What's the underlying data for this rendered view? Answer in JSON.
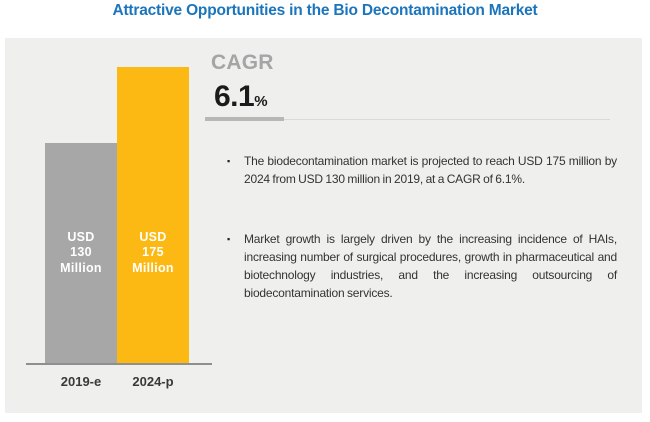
{
  "title": "Attractive Opportunities in the Bio Decontamination Market",
  "chart_data": {
    "type": "bar",
    "title": "Attractive Opportunities in the Bio Decontamination Market",
    "categories": [
      "2019-e",
      "2024-p"
    ],
    "values": [
      130,
      175
    ],
    "unit": "USD Million",
    "bar_value_labels": [
      "USD\n130\nMillion",
      "USD\n175\nMillion"
    ],
    "bar_colors": [
      "#A7A7A7",
      "#FCB813"
    ],
    "ylim": [
      0,
      175
    ],
    "grid": false,
    "legend": false,
    "xlabel": "",
    "ylabel": ""
  },
  "cagr": {
    "label": "CAGR",
    "value": "6.1",
    "unit": "%"
  },
  "bullets": {
    "marker": "▪",
    "items": [
      "The biodecontamination market is projected to reach USD 175 million by 2024 from USD 130 million in 2019, at a CAGR of 6.1%.",
      "Market growth is largely driven by the increasing incidence of HAIs, increasing number of surgical procedures, growth in pharmaceutical and biotechnology industries, and the increasing outsourcing of biodecontamination services."
    ]
  },
  "colors": {
    "title": "#1B75BC",
    "panel_bg": "#EFEFEE",
    "cagr_label": "#A5A5A5",
    "cagr_value": "#1B1B1B",
    "axis_label": "#3A3A3A",
    "body_text": "#333333",
    "bar_label_text": "#FFFFFF"
  }
}
